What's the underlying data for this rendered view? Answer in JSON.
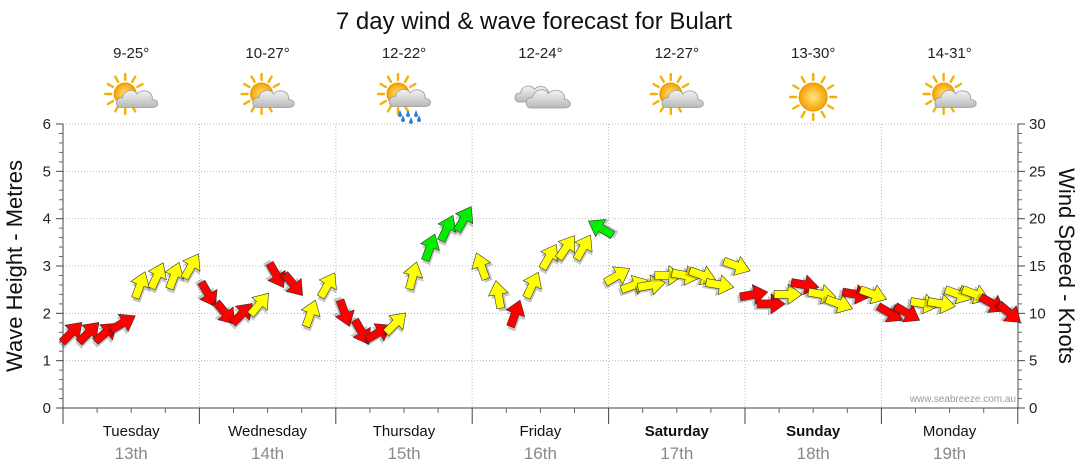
{
  "chart_data": {
    "type": "line",
    "title": "7 day wind & wave forecast for Bulart",
    "y_left_label": "Wave Height - Metres",
    "y_right_label": "Wind Speed - Knots",
    "y_left_range": [
      0,
      6
    ],
    "y_left_ticks": [
      "0",
      "1",
      "2",
      "3",
      "4",
      "5",
      "6"
    ],
    "y_right_range": [
      0,
      30
    ],
    "y_right_ticks": [
      "0",
      "5",
      "10",
      "15",
      "20",
      "25",
      "30"
    ],
    "grid": true,
    "watermark": "www.seabreeze.com.au",
    "days": [
      {
        "name": "Tuesday",
        "date": "13th",
        "weekend": false,
        "temp": "9-25°",
        "weather": "partly-cloudy-icon"
      },
      {
        "name": "Wednesday",
        "date": "14th",
        "weekend": false,
        "temp": "10-27°",
        "weather": "partly-cloudy-icon"
      },
      {
        "name": "Thursday",
        "date": "15th",
        "weekend": false,
        "temp": "12-22°",
        "weather": "showers-icon"
      },
      {
        "name": "Friday",
        "date": "16th",
        "weekend": false,
        "temp": "12-24°",
        "weather": "cloudy-icon"
      },
      {
        "name": "Saturday",
        "date": "17th",
        "weekend": true,
        "temp": "12-27°",
        "weather": "partly-cloudy-icon"
      },
      {
        "name": "Sunday",
        "date": "18th",
        "weekend": true,
        "temp": "13-30°",
        "weather": "sunny-icon"
      },
      {
        "name": "Monday",
        "date": "19th",
        "weekend": false,
        "temp": "14-31°",
        "weather": "partly-cloudy-icon"
      }
    ],
    "colors": {
      "light": "#ff0000",
      "moderate": "#ffff00",
      "strong": "#00ee00"
    },
    "wind_series": {
      "name": "Wind",
      "x": [
        0.0,
        0.125,
        0.25,
        0.375,
        0.5,
        0.625,
        0.75,
        0.875,
        1.0,
        1.125,
        1.25,
        1.375,
        1.5,
        1.625,
        1.75,
        1.875,
        2.0,
        2.125,
        2.25,
        2.375,
        2.5,
        2.625,
        2.75,
        2.875,
        3.0,
        3.125,
        3.25,
        3.375,
        3.5,
        3.625,
        3.75,
        3.875,
        4.0,
        4.125,
        4.25,
        4.375,
        4.5,
        4.625,
        4.75,
        4.875,
        5.0,
        5.125,
        5.25,
        5.375,
        5.5,
        5.625,
        5.75,
        5.875,
        6.0,
        6.125,
        6.25,
        6.375,
        6.5,
        6.625,
        6.75,
        6.875
      ],
      "knots": [
        8,
        8,
        8,
        9,
        13,
        14,
        14,
        15,
        12,
        10,
        10,
        11,
        14,
        13,
        10,
        13,
        10,
        8,
        8,
        9,
        14,
        17,
        19,
        20,
        15,
        12,
        10,
        13,
        16,
        17,
        17,
        19,
        14,
        13,
        13,
        14,
        14,
        14,
        13,
        15,
        12,
        11,
        12,
        13,
        12,
        11,
        12,
        12,
        10,
        10,
        11,
        11,
        12,
        12,
        11,
        10
      ],
      "direction_deg": [
        45,
        45,
        50,
        60,
        20,
        25,
        20,
        30,
        150,
        140,
        45,
        40,
        150,
        140,
        20,
        30,
        160,
        150,
        60,
        45,
        15,
        20,
        25,
        30,
        340,
        350,
        20,
        25,
        30,
        35,
        30,
        300,
        60,
        70,
        80,
        90,
        100,
        110,
        100,
        110,
        80,
        90,
        90,
        100,
        100,
        110,
        100,
        110,
        120,
        120,
        100,
        100,
        110,
        110,
        120,
        130
      ],
      "band": [
        "light",
        "light",
        "light",
        "light",
        "moderate",
        "moderate",
        "moderate",
        "moderate",
        "light",
        "light",
        "light",
        "moderate",
        "light",
        "light",
        "moderate",
        "moderate",
        "light",
        "light",
        "light",
        "moderate",
        "moderate",
        "strong",
        "strong",
        "strong",
        "moderate",
        "moderate",
        "light",
        "moderate",
        "moderate",
        "moderate",
        "moderate",
        "strong",
        "moderate",
        "moderate",
        "moderate",
        "moderate",
        "moderate",
        "moderate",
        "moderate",
        "moderate",
        "light",
        "light",
        "moderate",
        "light",
        "moderate",
        "moderate",
        "light",
        "moderate",
        "light",
        "light",
        "moderate",
        "moderate",
        "moderate",
        "moderate",
        "light",
        "light"
      ]
    }
  }
}
